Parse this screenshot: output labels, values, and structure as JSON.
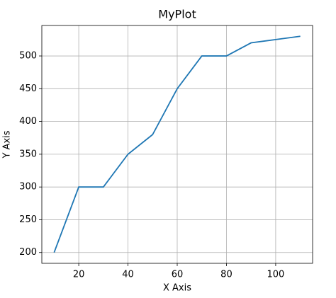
{
  "chart_data": {
    "type": "line",
    "title": "MyPlot",
    "x_label": "X Axis",
    "y_label": "Y Axis",
    "x": [
      10,
      20,
      30,
      40,
      50,
      60,
      70,
      80,
      90,
      100,
      110
    ],
    "series": [
      {
        "color": "#1f77b4",
        "values": [
          200,
          300,
          300,
          350,
          380,
          450,
          500,
          500,
          520,
          525,
          530
        ]
      }
    ],
    "xlim": [
      5,
      115
    ],
    "ylim": [
      183.5,
      546.5
    ],
    "xticks": [
      20,
      40,
      60,
      80,
      100
    ],
    "yticks": [
      200,
      250,
      300,
      350,
      400,
      450,
      500
    ],
    "grid": true
  }
}
